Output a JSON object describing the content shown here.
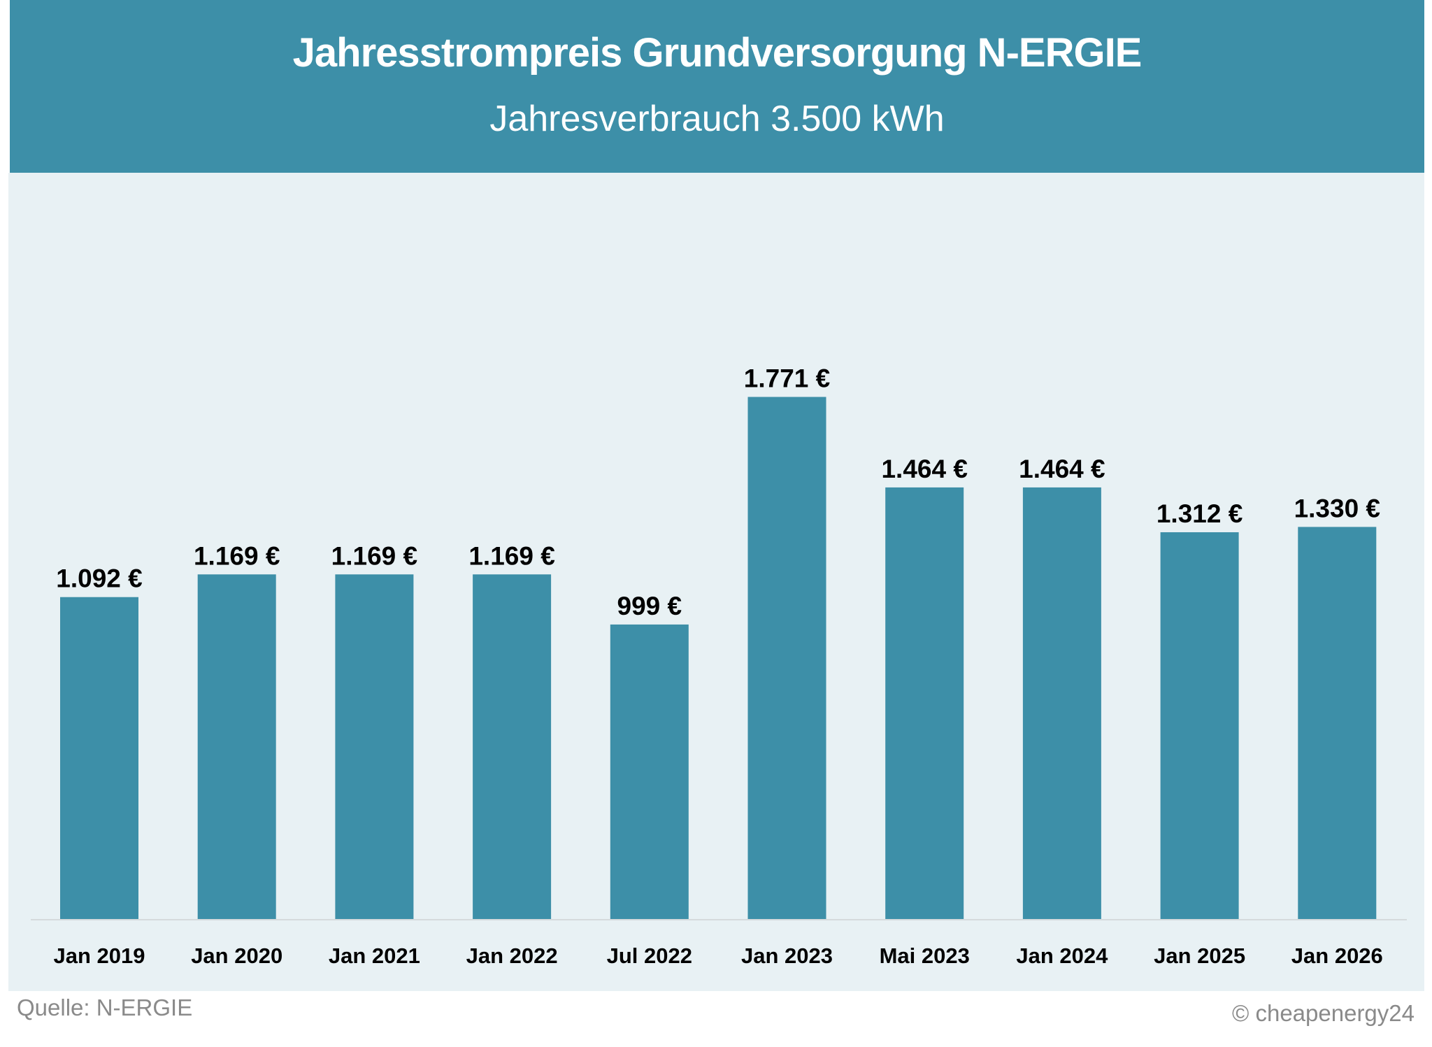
{
  "chart_data": {
    "type": "bar",
    "title": "Jahresstrompreis Grundversorgung N-ERGIE",
    "subtitle": "Jahresverbrauch 3.500 kWh",
    "categories": [
      "Jan 2019",
      "Jan 2020",
      "Jan 2021",
      "Jan 2022",
      "Jul 2022",
      "Jan 2023",
      "Mai 2023",
      "Jan 2024",
      "Jan 2025",
      "Jan 2026"
    ],
    "values": [
      1092,
      1169,
      1169,
      1169,
      999,
      1771,
      1464,
      1464,
      1312,
      1330
    ],
    "value_labels": [
      "1.092 €",
      "1.169 €",
      "1.169 €",
      "1.169 €",
      "999 €",
      "1.771 €",
      "1.464 €",
      "1.464 €",
      "1.312 €",
      "1.330 €"
    ],
    "xlabel": "",
    "ylabel": "",
    "ylim": [
      0,
      2000
    ],
    "grid": false,
    "bar_color": "#3d8fa8"
  },
  "footer": {
    "source": "Quelle: N-ERGIE",
    "credit": "© cheapenergy24"
  }
}
